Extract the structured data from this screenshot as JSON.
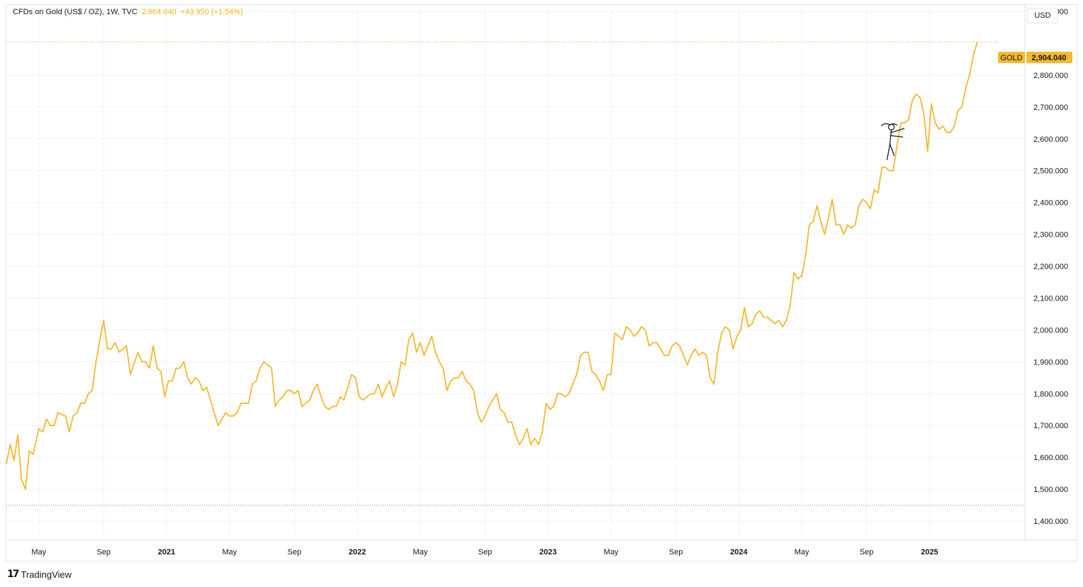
{
  "header": {
    "symbol_title": "CFDs on Gold (US$ / OZ), 1W, TVC",
    "last_price": "2,904.040",
    "change": "+43.950 (+1.54%)"
  },
  "currency_button": "USD",
  "price_tag": {
    "symbol": "GOLD",
    "price": "2,904.040"
  },
  "brand": {
    "name": "TradingView",
    "logo_icon": "tradingview-logo-icon"
  },
  "colors": {
    "line": "#f5b82e",
    "tag_bg": "#f5b82e",
    "grid": "#f0f3fa",
    "price_line": "#d8a040",
    "low_line": "#7d8794"
  },
  "chart_data": {
    "type": "line",
    "title": "CFDs on Gold (US$ / OZ), 1W, TVC",
    "series": [
      {
        "name": "GOLD",
        "points": [
          [
            2020.16,
            1580
          ],
          [
            2020.18,
            1640
          ],
          [
            2020.2,
            1590
          ],
          [
            2020.22,
            1670
          ],
          [
            2020.24,
            1530
          ],
          [
            2020.26,
            1500
          ],
          [
            2020.28,
            1620
          ],
          [
            2020.3,
            1610
          ],
          [
            2020.33,
            1690
          ],
          [
            2020.35,
            1680
          ],
          [
            2020.37,
            1720
          ],
          [
            2020.39,
            1700
          ],
          [
            2020.41,
            1700
          ],
          [
            2020.43,
            1740
          ],
          [
            2020.47,
            1730
          ],
          [
            2020.49,
            1680
          ],
          [
            2020.51,
            1730
          ],
          [
            2020.53,
            1740
          ],
          [
            2020.55,
            1770
          ],
          [
            2020.57,
            1770
          ],
          [
            2020.59,
            1800
          ],
          [
            2020.61,
            1810
          ],
          [
            2020.63,
            1900
          ],
          [
            2020.65,
            1970
          ],
          [
            2020.67,
            2030
          ],
          [
            2020.69,
            1940
          ],
          [
            2020.71,
            1940
          ],
          [
            2020.73,
            1960
          ],
          [
            2020.75,
            1930
          ],
          [
            2020.79,
            1950
          ],
          [
            2020.81,
            1860
          ],
          [
            2020.85,
            1930
          ],
          [
            2020.87,
            1900
          ],
          [
            2020.89,
            1900
          ],
          [
            2020.91,
            1880
          ],
          [
            2020.93,
            1950
          ],
          [
            2020.95,
            1880
          ],
          [
            2020.97,
            1870
          ],
          [
            2020.99,
            1790
          ],
          [
            2021.01,
            1840
          ],
          [
            2021.03,
            1840
          ],
          [
            2021.05,
            1880
          ],
          [
            2021.07,
            1880
          ],
          [
            2021.09,
            1900
          ],
          [
            2021.11,
            1850
          ],
          [
            2021.13,
            1830
          ],
          [
            2021.15,
            1850
          ],
          [
            2021.17,
            1840
          ],
          [
            2021.19,
            1810
          ],
          [
            2021.21,
            1820
          ],
          [
            2021.23,
            1780
          ],
          [
            2021.25,
            1740
          ],
          [
            2021.27,
            1700
          ],
          [
            2021.31,
            1740
          ],
          [
            2021.33,
            1730
          ],
          [
            2021.35,
            1730
          ],
          [
            2021.37,
            1740
          ],
          [
            2021.39,
            1770
          ],
          [
            2021.41,
            1770
          ],
          [
            2021.43,
            1770
          ],
          [
            2021.45,
            1830
          ],
          [
            2021.47,
            1840
          ],
          [
            2021.49,
            1880
          ],
          [
            2021.51,
            1900
          ],
          [
            2021.55,
            1880
          ],
          [
            2021.57,
            1760
          ],
          [
            2021.59,
            1780
          ],
          [
            2021.61,
            1790
          ],
          [
            2021.63,
            1810
          ],
          [
            2021.65,
            1810
          ],
          [
            2021.67,
            1800
          ],
          [
            2021.69,
            1810
          ],
          [
            2021.71,
            1760
          ],
          [
            2021.75,
            1780
          ],
          [
            2021.77,
            1810
          ],
          [
            2021.79,
            1830
          ],
          [
            2021.81,
            1790
          ],
          [
            2021.83,
            1760
          ],
          [
            2021.85,
            1750
          ],
          [
            2021.87,
            1760
          ],
          [
            2021.89,
            1760
          ],
          [
            2021.91,
            1790
          ],
          [
            2021.93,
            1780
          ],
          [
            2021.95,
            1820
          ],
          [
            2021.97,
            1860
          ],
          [
            2021.99,
            1850
          ],
          [
            2022.01,
            1790
          ],
          [
            2022.03,
            1780
          ],
          [
            2022.05,
            1790
          ],
          [
            2022.07,
            1800
          ],
          [
            2022.09,
            1800
          ],
          [
            2022.11,
            1830
          ],
          [
            2022.13,
            1790
          ],
          [
            2022.15,
            1820
          ],
          [
            2022.17,
            1840
          ],
          [
            2022.19,
            1790
          ],
          [
            2022.21,
            1830
          ],
          [
            2022.23,
            1900
          ],
          [
            2022.25,
            1890
          ],
          [
            2022.27,
            1970
          ],
          [
            2022.29,
            1990
          ],
          [
            2022.31,
            1930
          ],
          [
            2022.33,
            1960
          ],
          [
            2022.35,
            1920
          ],
          [
            2022.37,
            1950
          ],
          [
            2022.39,
            1980
          ],
          [
            2022.41,
            1930
          ],
          [
            2022.43,
            1900
          ],
          [
            2022.45,
            1880
          ],
          [
            2022.47,
            1810
          ],
          [
            2022.49,
            1840
          ],
          [
            2022.51,
            1850
          ],
          [
            2022.53,
            1850
          ],
          [
            2022.55,
            1870
          ],
          [
            2022.57,
            1840
          ],
          [
            2022.59,
            1830
          ],
          [
            2022.61,
            1810
          ],
          [
            2022.63,
            1740
          ],
          [
            2022.65,
            1710
          ],
          [
            2022.67,
            1730
          ],
          [
            2022.69,
            1760
          ],
          [
            2022.71,
            1780
          ],
          [
            2022.73,
            1800
          ],
          [
            2022.75,
            1750
          ],
          [
            2022.77,
            1740
          ],
          [
            2022.79,
            1710
          ],
          [
            2022.81,
            1710
          ],
          [
            2022.83,
            1670
          ],
          [
            2022.85,
            1640
          ],
          [
            2022.87,
            1660
          ],
          [
            2022.89,
            1690
          ],
          [
            2022.91,
            1640
          ],
          [
            2022.93,
            1660
          ],
          [
            2022.95,
            1640
          ],
          [
            2022.97,
            1680
          ],
          [
            2022.99,
            1770
          ],
          [
            2023.01,
            1750
          ],
          [
            2023.03,
            1760
          ],
          [
            2023.05,
            1800
          ],
          [
            2023.07,
            1800
          ],
          [
            2023.09,
            1790
          ],
          [
            2023.11,
            1800
          ],
          [
            2023.13,
            1830
          ],
          [
            2023.15,
            1860
          ],
          [
            2023.17,
            1920
          ],
          [
            2023.19,
            1930
          ],
          [
            2023.21,
            1930
          ],
          [
            2023.23,
            1870
          ],
          [
            2023.25,
            1860
          ],
          [
            2023.27,
            1840
          ],
          [
            2023.29,
            1810
          ],
          [
            2023.31,
            1860
          ],
          [
            2023.33,
            1860
          ],
          [
            2023.35,
            1990
          ],
          [
            2023.37,
            1980
          ],
          [
            2023.39,
            1970
          ],
          [
            2023.41,
            2010
          ],
          [
            2023.43,
            2000
          ],
          [
            2023.45,
            1980
          ],
          [
            2023.47,
            1990
          ],
          [
            2023.49,
            2010
          ],
          [
            2023.51,
            2000
          ],
          [
            2023.53,
            1950
          ],
          [
            2023.55,
            1960
          ],
          [
            2023.57,
            1960
          ],
          [
            2023.61,
            1920
          ],
          [
            2023.63,
            1920
          ],
          [
            2023.65,
            1950
          ],
          [
            2023.67,
            1960
          ],
          [
            2023.69,
            1950
          ],
          [
            2023.71,
            1920
          ],
          [
            2023.73,
            1890
          ],
          [
            2023.75,
            1920
          ],
          [
            2023.77,
            1940
          ],
          [
            2023.79,
            1920
          ],
          [
            2023.81,
            1930
          ],
          [
            2023.83,
            1920
          ],
          [
            2023.85,
            1850
          ],
          [
            2023.87,
            1830
          ],
          [
            2023.89,
            1930
          ],
          [
            2023.91,
            1990
          ],
          [
            2023.93,
            2010
          ],
          [
            2023.95,
            2000
          ],
          [
            2023.97,
            1940
          ],
          [
            2023.99,
            1980
          ],
          [
            2024.01,
            2000
          ],
          [
            2024.03,
            2070
          ],
          [
            2024.05,
            2010
          ],
          [
            2024.07,
            2020
          ],
          [
            2024.09,
            2050
          ],
          [
            2024.11,
            2060
          ],
          [
            2024.13,
            2040
          ],
          [
            2024.15,
            2040
          ],
          [
            2024.17,
            2030
          ],
          [
            2024.19,
            2020
          ],
          [
            2024.21,
            2030
          ],
          [
            2024.23,
            2010
          ],
          [
            2024.25,
            2030
          ],
          [
            2024.27,
            2080
          ],
          [
            2024.29,
            2180
          ],
          [
            2024.31,
            2160
          ],
          [
            2024.33,
            2170
          ],
          [
            2024.35,
            2230
          ],
          [
            2024.37,
            2330
          ],
          [
            2024.39,
            2340
          ],
          [
            2024.41,
            2390
          ],
          [
            2024.43,
            2340
          ],
          [
            2024.45,
            2300
          ],
          [
            2024.47,
            2350
          ],
          [
            2024.49,
            2410
          ],
          [
            2024.51,
            2330
          ],
          [
            2024.53,
            2330
          ],
          [
            2024.55,
            2300
          ],
          [
            2024.57,
            2330
          ],
          [
            2024.59,
            2320
          ],
          [
            2024.61,
            2330
          ],
          [
            2024.63,
            2390
          ],
          [
            2024.65,
            2410
          ],
          [
            2024.67,
            2400
          ],
          [
            2024.69,
            2380
          ],
          [
            2024.71,
            2440
          ],
          [
            2024.73,
            2430
          ],
          [
            2024.75,
            2510
          ],
          [
            2024.77,
            2510
          ],
          [
            2024.79,
            2500
          ],
          [
            2024.81,
            2500
          ],
          [
            2024.83,
            2580
          ],
          [
            2024.85,
            2650
          ],
          [
            2024.87,
            2650
          ],
          [
            2024.89,
            2660
          ],
          [
            2024.91,
            2720
          ],
          [
            2024.93,
            2740
          ],
          [
            2024.95,
            2730
          ],
          [
            2024.97,
            2680
          ],
          [
            2024.99,
            2560
          ],
          [
            2025.01,
            2710
          ],
          [
            2025.03,
            2650
          ],
          [
            2025.05,
            2630
          ],
          [
            2025.07,
            2640
          ],
          [
            2025.09,
            2620
          ],
          [
            2025.11,
            2620
          ],
          [
            2025.13,
            2640
          ],
          [
            2025.15,
            2690
          ],
          [
            2025.17,
            2700
          ],
          [
            2025.19,
            2760
          ],
          [
            2025.21,
            2800
          ],
          [
            2025.23,
            2860
          ],
          [
            2025.25,
            2904
          ]
        ]
      }
    ],
    "y_axis": {
      "ticks": [
        "1,400.000",
        "1,500.000",
        "1,600.000",
        "1,700.000",
        "1,800.000",
        "1,900.000",
        "2,000.000",
        "2,100.000",
        "2,200.000",
        "2,300.000",
        "2,400.000",
        "2,500.000",
        "2,600.000",
        "2,700.000",
        "2,800.000",
        "3,000.000"
      ],
      "tick_values": [
        1400,
        1500,
        1600,
        1700,
        1800,
        1900,
        2000,
        2100,
        2200,
        2300,
        2400,
        2500,
        2600,
        2700,
        2800,
        3000
      ],
      "range": [
        1340,
        3020
      ]
    },
    "x_axis": {
      "labels": [
        {
          "t": 2020.33,
          "label": "May",
          "year": false
        },
        {
          "t": 2020.67,
          "label": "Sep",
          "year": false
        },
        {
          "t": 2021.0,
          "label": "2021",
          "year": true
        },
        {
          "t": 2021.33,
          "label": "May",
          "year": false
        },
        {
          "t": 2021.67,
          "label": "Sep",
          "year": false
        },
        {
          "t": 2022.0,
          "label": "2022",
          "year": true
        },
        {
          "t": 2022.33,
          "label": "May",
          "year": false
        },
        {
          "t": 2022.67,
          "label": "Sep",
          "year": false
        },
        {
          "t": 2023.0,
          "label": "2023",
          "year": true
        },
        {
          "t": 2023.33,
          "label": "May",
          "year": false
        },
        {
          "t": 2023.67,
          "label": "Sep",
          "year": false
        },
        {
          "t": 2024.0,
          "label": "2024",
          "year": true
        },
        {
          "t": 2024.33,
          "label": "May",
          "year": false
        },
        {
          "t": 2024.67,
          "label": "Sep",
          "year": false
        },
        {
          "t": 2025.0,
          "label": "2025",
          "year": true
        }
      ],
      "range": [
        2020.16,
        2025.5
      ]
    },
    "last_value": 2904.04,
    "low_reference": 1450,
    "grid": true
  }
}
